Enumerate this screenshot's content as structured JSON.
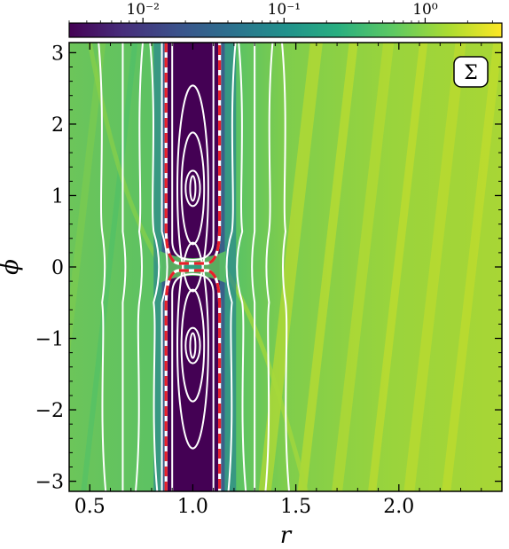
{
  "chart_data": {
    "type": "heatmap",
    "title": "",
    "panel_label": "Σ",
    "xlabel": "r",
    "ylabel": "ϕ",
    "xlim": [
      0.4,
      2.5
    ],
    "ylim": [
      -3.1416,
      3.1416
    ],
    "x_ticks": [
      0.5,
      1.0,
      1.5,
      2.0
    ],
    "x_tick_labels": [
      "0.5",
      "1.0",
      "1.5",
      "2.0"
    ],
    "y_ticks": [
      -3,
      -2,
      -1,
      0,
      1,
      2,
      3
    ],
    "y_tick_labels": [
      "−3",
      "−2",
      "−1",
      "0",
      "1",
      "2",
      "3"
    ],
    "colorbar": {
      "scale": "log",
      "range": [
        0.003,
        3.5
      ],
      "ticks": [
        0.01,
        0.1,
        1
      ],
      "tick_labels": [
        "10⁻²",
        "10⁻¹",
        "10⁰"
      ],
      "colormap": "viridis"
    },
    "gap": {
      "r_inner": 0.87,
      "r_outer": 1.13,
      "planet_phi": 0.0,
      "vortex_centers_phi": [
        1.1,
        -1.1
      ],
      "value_in_gap": 0.003,
      "value_background": 1.0
    },
    "separatrix_color": "#e8202a",
    "contour_color": "#ffffff",
    "streamline_r_positions": [
      0.56,
      0.66,
      0.74,
      0.81,
      0.85,
      1.19,
      1.24,
      1.3,
      1.37,
      1.45
    ]
  }
}
